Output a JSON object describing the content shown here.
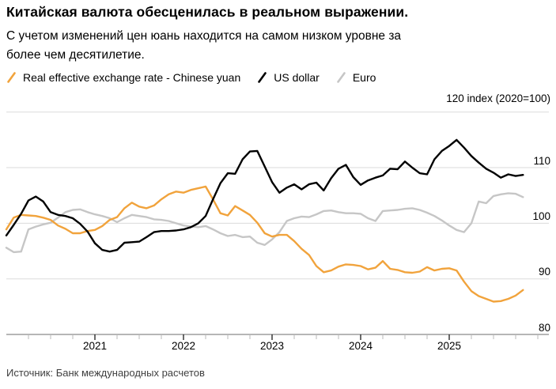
{
  "title": "Китайская валюта обесценилась в реальном выражении.",
  "subtitle_lines": [
    "С учетом изменений цен юань находится на самом низком уровне за",
    "более чем десятилетие."
  ],
  "source": "Источник: Банк международных расчетов",
  "legend": [
    {
      "label": "Real effective exchange rate - Chinese yuan",
      "color": "#F1A33C"
    },
    {
      "label": "US dollar",
      "color": "#000000"
    },
    {
      "label": "Euro",
      "color": "#C6C6C6"
    }
  ],
  "axis": {
    "y_top_label": "120 index (2020=100)",
    "y_tick_labels": [
      "110",
      "100",
      "90",
      "80"
    ],
    "y_tick_values": [
      110,
      100,
      90,
      80
    ],
    "x_tick_labels": [
      "2021",
      "2022",
      "2023",
      "2024",
      "2025"
    ]
  },
  "colors": {
    "grid": "#dbdbdb",
    "axis_line": "#8a8a8a",
    "tick_major": "#1a1a1a",
    "tick_minor": "#b8b8b8",
    "background": "#ffffff"
  },
  "chart_data": {
    "type": "line",
    "title": "Китайская валюта обесценилась в реальном выражении.",
    "x_unit": "month",
    "x_start": "2020-01",
    "x_end": "2025-11",
    "x_tick_years": [
      2021,
      2022,
      2023,
      2024,
      2025
    ],
    "ylim": [
      80,
      122
    ],
    "y_gridlines": [
      120,
      110,
      100,
      90
    ],
    "grid": true,
    "legend_position": "top",
    "series": [
      {
        "name": "Real effective exchange rate - Chinese yuan",
        "color": "#F1A33C",
        "values": [
          98.9,
          101.0,
          101.5,
          101.4,
          101.3,
          101.0,
          100.6,
          99.6,
          99.0,
          98.2,
          98.2,
          98.6,
          98.8,
          99.5,
          100.6,
          101.1,
          102.7,
          103.7,
          103.0,
          102.7,
          103.2,
          104.3,
          105.2,
          105.7,
          105.5,
          106.0,
          106.3,
          106.6,
          104.3,
          101.8,
          101.4,
          103.1,
          102.3,
          101.5,
          100.1,
          98.2,
          97.6,
          97.9,
          97.9,
          96.8,
          95.4,
          94.3,
          92.3,
          91.2,
          91.5,
          92.2,
          92.6,
          92.5,
          92.3,
          91.7,
          92.0,
          93.2,
          91.8,
          91.6,
          91.2,
          91.1,
          91.3,
          92.1,
          91.5,
          91.8,
          91.9,
          91.5,
          89.5,
          87.8,
          86.9,
          86.4,
          85.9,
          86.0,
          86.4,
          87.0,
          88.0
        ]
      },
      {
        "name": "US dollar",
        "color": "#000000",
        "values": [
          97.8,
          99.7,
          101.7,
          104.1,
          104.8,
          103.9,
          102.0,
          101.5,
          101.3,
          100.9,
          99.9,
          98.5,
          96.4,
          95.2,
          94.9,
          95.2,
          96.5,
          96.6,
          96.7,
          97.5,
          98.4,
          98.6,
          98.6,
          98.7,
          98.9,
          99.3,
          100.0,
          101.3,
          104.3,
          107.2,
          109.0,
          108.9,
          111.5,
          112.9,
          113.0,
          110.2,
          107.4,
          105.5,
          106.4,
          107.0,
          106.1,
          107.0,
          107.3,
          105.9,
          108.1,
          109.8,
          110.5,
          108.3,
          106.9,
          107.7,
          108.2,
          108.6,
          109.8,
          109.7,
          111.1,
          110.0,
          109.0,
          108.8,
          111.5,
          113.0,
          113.9,
          115.0,
          113.6,
          112.1,
          110.9,
          109.8,
          109.1,
          108.2,
          108.8,
          108.5,
          108.7
        ]
      },
      {
        "name": "Euro",
        "color": "#C6C6C6",
        "values": [
          95.6,
          94.8,
          94.9,
          98.9,
          99.4,
          99.8,
          100.1,
          101.0,
          102.0,
          102.4,
          102.5,
          102.0,
          101.6,
          101.3,
          100.9,
          100.2,
          100.9,
          101.5,
          101.3,
          101.1,
          100.7,
          100.6,
          100.4,
          100.0,
          99.6,
          99.4,
          99.3,
          99.5,
          98.9,
          98.2,
          97.7,
          97.9,
          97.5,
          97.6,
          96.5,
          96.1,
          97.1,
          98.4,
          100.4,
          100.9,
          101.2,
          101.1,
          101.6,
          102.2,
          102.3,
          102.0,
          101.8,
          101.8,
          101.7,
          100.9,
          100.4,
          102.2,
          102.3,
          102.4,
          102.6,
          102.7,
          102.4,
          101.9,
          101.3,
          100.5,
          99.6,
          98.8,
          98.4,
          100.0,
          103.9,
          103.6,
          104.9,
          105.2,
          105.4,
          105.3,
          104.7
        ]
      }
    ]
  }
}
